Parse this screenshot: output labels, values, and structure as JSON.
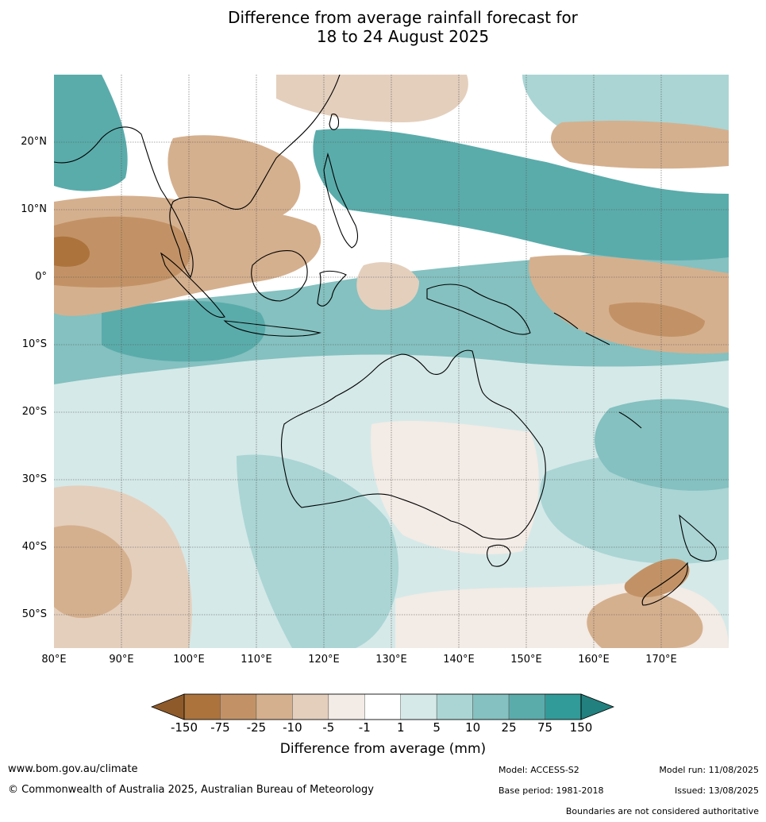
{
  "title": {
    "line1": "Difference from average rainfall forecast for",
    "line2": "18 to 24 August 2025"
  },
  "map": {
    "lat_labels": [
      "20°N",
      "10°N",
      "0°",
      "10°S",
      "20°S",
      "30°S",
      "40°S",
      "50°S"
    ],
    "lon_labels": [
      "80°E",
      "90°E",
      "100°E",
      "110°E",
      "120°E",
      "130°E",
      "140°E",
      "150°E",
      "160°E",
      "170°E"
    ]
  },
  "colorbar": {
    "label": "Difference from average (mm)",
    "ticks": [
      "-150",
      "-75",
      "-25",
      "-10",
      "-5",
      "-1",
      "1",
      "5",
      "10",
      "25",
      "75",
      "150"
    ],
    "colors": [
      "#8e5a2a",
      "#ac733d",
      "#c29266",
      "#d5b08e",
      "#e4cfbd",
      "#f3ebe5",
      "#ffffff",
      "#d5e9e8",
      "#aad5d4",
      "#84c1c0",
      "#5aacab",
      "#319b99",
      "#22807e"
    ]
  },
  "footer": {
    "url": "www.bom.gov.au/climate",
    "copyright": "© Commonwealth of Australia 2025, Australian Bureau of Meteorology",
    "model": "Model: ACCESS-S2",
    "base_period": "Base period: 1981-2018",
    "model_run": "Model run: 11/08/2025",
    "issued": "Issued: 13/08/2025",
    "disclaimer": "Boundaries are not considered authoritative"
  }
}
